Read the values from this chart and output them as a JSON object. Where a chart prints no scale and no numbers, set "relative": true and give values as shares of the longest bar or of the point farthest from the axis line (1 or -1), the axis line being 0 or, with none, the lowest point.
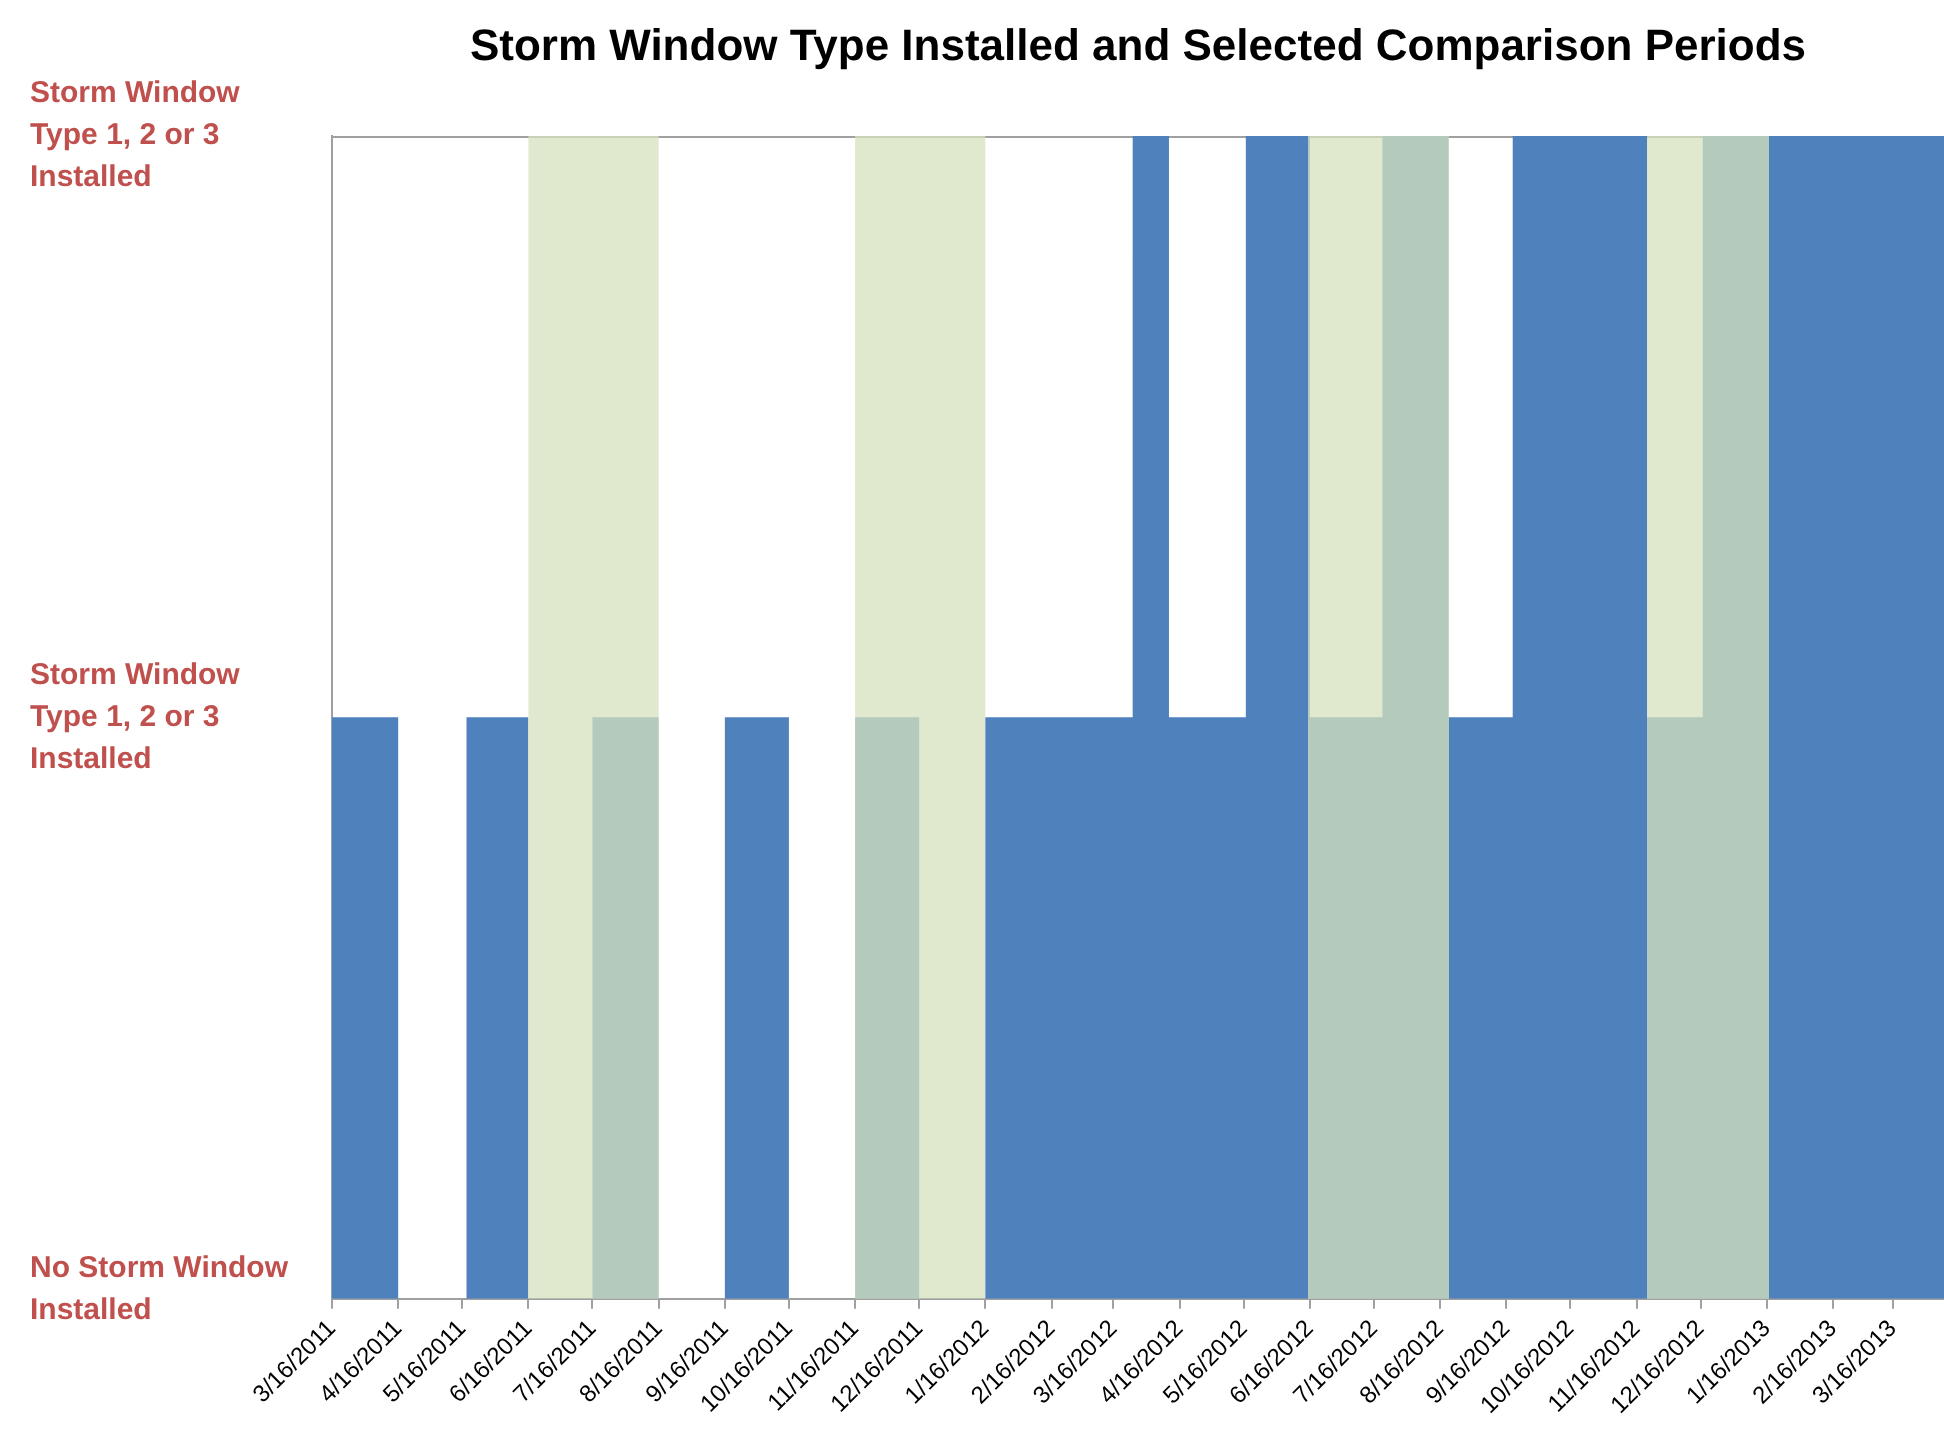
{
  "chart_data": {
    "type": "area",
    "title": "Storm Window Type Installed and Selected Comparison Periods",
    "x": [
      "2011-03-16",
      "2011-04-16",
      "2011-04-16",
      "2011-05-18",
      "2011-05-18",
      "2011-06-16",
      "2011-06-16",
      "2011-07-16",
      "2011-07-16",
      "2011-08-16",
      "2011-08-16",
      "2011-09-16",
      "2011-09-16",
      "2011-10-16",
      "2011-10-16",
      "2011-11-16",
      "2011-11-16",
      "2011-12-16",
      "2011-12-16",
      "2012-01-16",
      "2012-01-16",
      "2012-03-25",
      "2012-03-25",
      "2012-04-11",
      "2012-04-11",
      "2012-05-17",
      "2012-05-17",
      "2012-06-16",
      "2012-06-16",
      "2012-07-20",
      "2012-07-20",
      "2012-08-20",
      "2012-08-20",
      "2012-09-19",
      "2012-09-19",
      "2012-11-21",
      "2012-11-21",
      "2012-12-17",
      "2012-12-17",
      "2013-04-09"
    ],
    "values": [
      0.5,
      0.5,
      0,
      0,
      0.5,
      0.5,
      0,
      0,
      0.5,
      0.5,
      0,
      0,
      0.5,
      0.5,
      0,
      0,
      0.5,
      0.5,
      0,
      0,
      0.5,
      0.5,
      1,
      1,
      0.5,
      0.5,
      1,
      1,
      0.5,
      0.5,
      1,
      1,
      0.5,
      0.5,
      1,
      1,
      0.5,
      0.5,
      1,
      1
    ],
    "relative": true,
    "color": "#4f81bd",
    "xlim": [
      "2011-03-16",
      "2013-04-09"
    ],
    "xticks": [
      {
        "value": "2011-03-16",
        "label": "3/16/2011"
      },
      {
        "value": "2011-04-16",
        "label": "4/16/2011"
      },
      {
        "value": "2011-05-16",
        "label": "5/16/2011"
      },
      {
        "value": "2011-06-16",
        "label": "6/16/2011"
      },
      {
        "value": "2011-07-16",
        "label": "7/16/2011"
      },
      {
        "value": "2011-08-16",
        "label": "8/16/2011"
      },
      {
        "value": "2011-09-16",
        "label": "9/16/2011"
      },
      {
        "value": "2011-10-16",
        "label": "10/16/2011"
      },
      {
        "value": "2011-11-16",
        "label": "11/16/2011"
      },
      {
        "value": "2011-12-16",
        "label": "12/16/2011"
      },
      {
        "value": "2012-01-16",
        "label": "1/16/2012"
      },
      {
        "value": "2012-02-16",
        "label": "2/16/2012"
      },
      {
        "value": "2012-03-16",
        "label": "3/16/2012"
      },
      {
        "value": "2012-04-16",
        "label": "4/16/2012"
      },
      {
        "value": "2012-05-16",
        "label": "5/16/2012"
      },
      {
        "value": "2012-06-16",
        "label": "6/16/2012"
      },
      {
        "value": "2012-07-16",
        "label": "7/16/2012"
      },
      {
        "value": "2012-08-16",
        "label": "8/16/2012"
      },
      {
        "value": "2012-09-16",
        "label": "9/16/2012"
      },
      {
        "value": "2012-10-16",
        "label": "10/16/2012"
      },
      {
        "value": "2012-11-16",
        "label": "11/16/2012"
      },
      {
        "value": "2012-12-16",
        "label": "12/16/2012"
      },
      {
        "value": "2013-01-16",
        "label": "1/16/2013"
      },
      {
        "value": "2013-02-16",
        "label": "2/16/2013"
      },
      {
        "value": "2013-03-16",
        "label": "3/16/2013"
      }
    ],
    "annotations": [
      "No Storm Window Installed",
      "Storm Window Type 1, 2 or 3 Installed",
      "Storm Window Type 1, 2 or 3 Installed"
    ],
    "bands": [
      {
        "axis": "x",
        "from": "2011-06-16",
        "to": "2011-08-16",
        "color": "#d6e2bc"
      },
      {
        "axis": "x",
        "from": "2011-11-16",
        "to": "2012-01-16",
        "color": "#d6e2bc"
      },
      {
        "axis": "x",
        "from": "2012-06-15",
        "to": "2012-08-20",
        "color": "#d6e2bc"
      },
      {
        "axis": "x",
        "from": "2012-11-21",
        "to": "2013-01-17",
        "color": "#d6e2bc"
      }
    ]
  }
}
